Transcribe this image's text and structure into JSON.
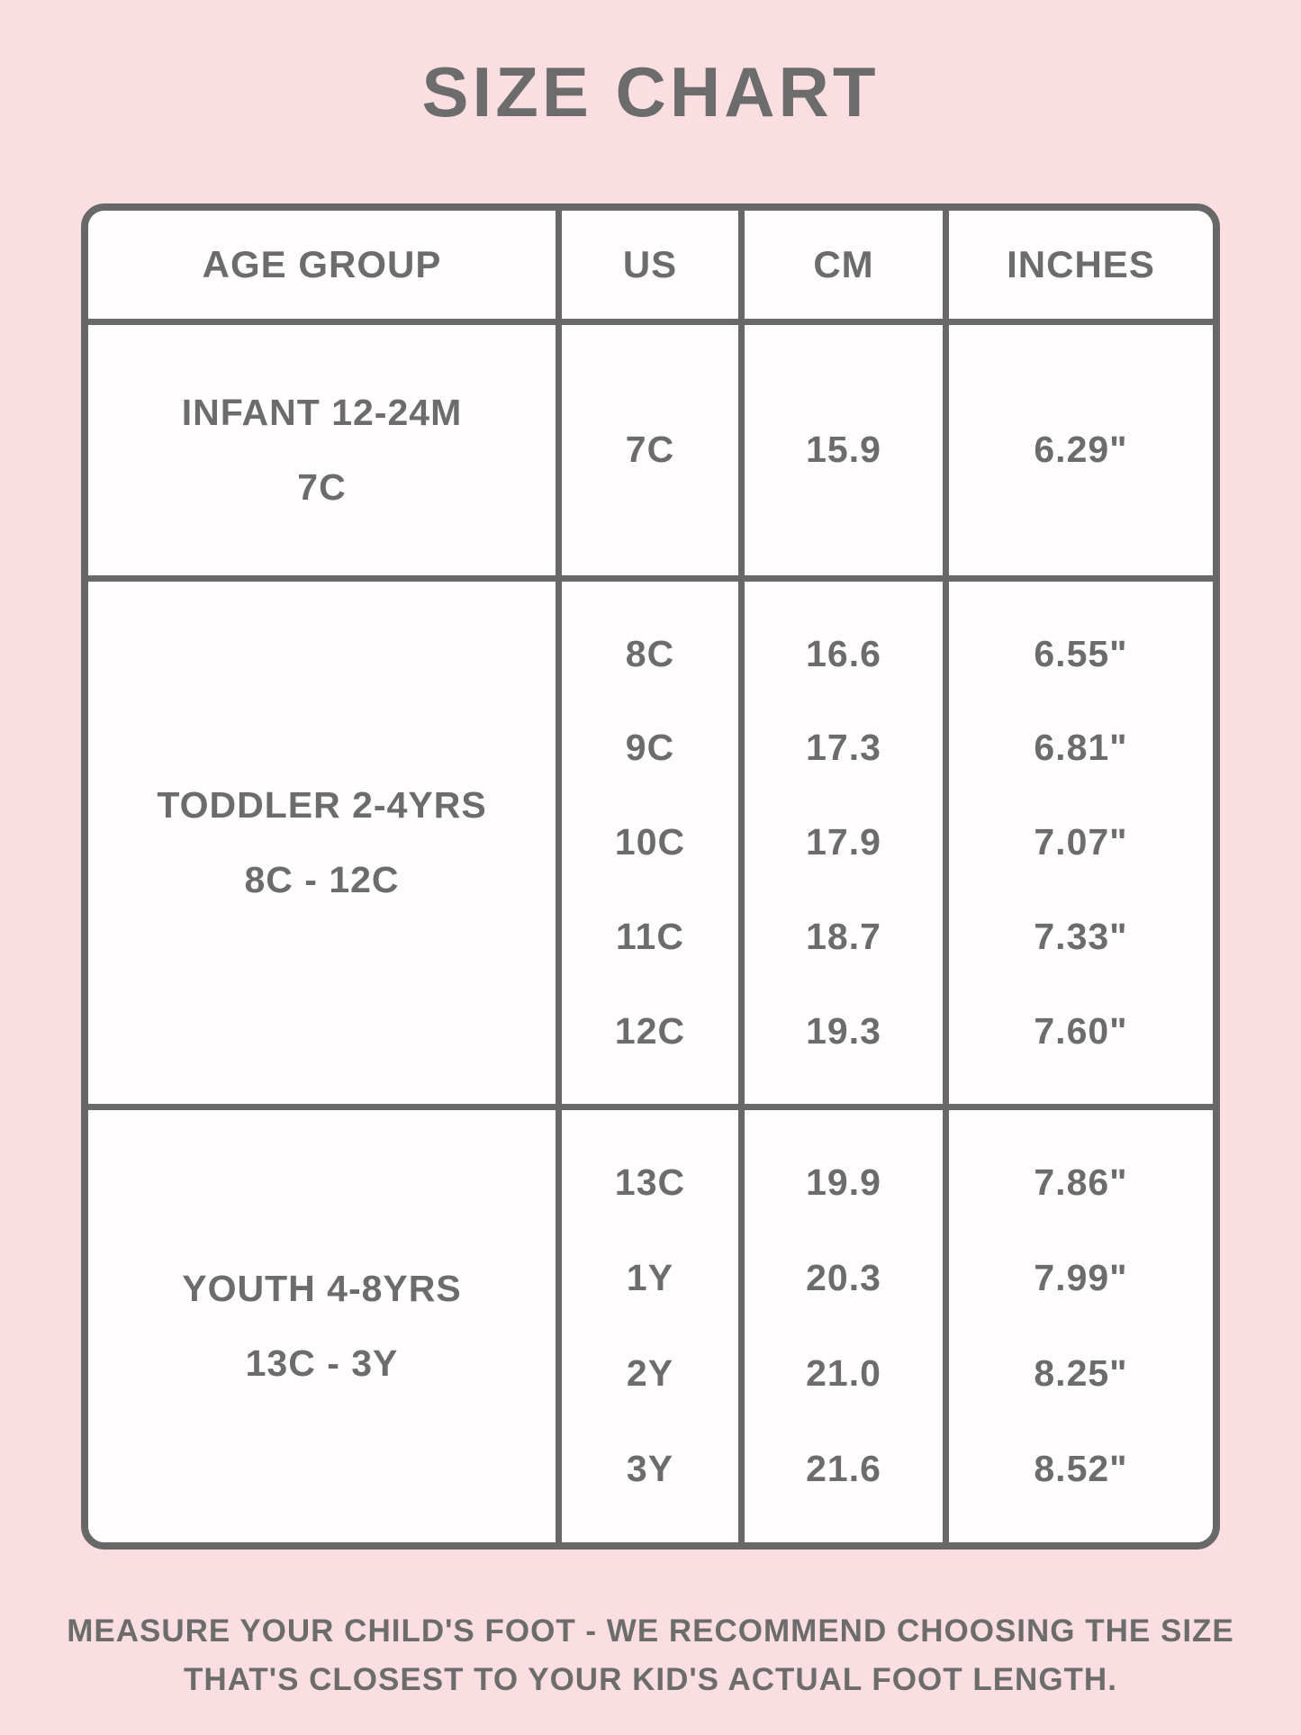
{
  "page": {
    "title": "SIZE CHART",
    "footer_line1": "MEASURE YOUR CHILD'S FOOT - WE RECOMMEND CHOOSING THE SIZE",
    "footer_line2": "THAT'S CLOSEST TO YOUR KID'S ACTUAL FOOT LENGTH."
  },
  "colors": {
    "bg": "#fbdee1",
    "line": "#686868",
    "text": "#6c6c6c",
    "cell": "#fffdfd"
  },
  "table": {
    "headers": [
      "AGE GROUP",
      "US",
      "CM",
      "INCHES"
    ],
    "groups": [
      {
        "label": "INFANT 12-24M",
        "range": "7C",
        "rows": [
          {
            "us": "7C",
            "cm": "15.9",
            "inches": "6.29\""
          }
        ]
      },
      {
        "label": "TODDLER 2-4YRS",
        "range": "8C - 12C",
        "rows": [
          {
            "us": "8C",
            "cm": "16.6",
            "inches": "6.55\""
          },
          {
            "us": "9C",
            "cm": "17.3",
            "inches": "6.81\""
          },
          {
            "us": "10C",
            "cm": "17.9",
            "inches": "7.07\""
          },
          {
            "us": "11C",
            "cm": "18.7",
            "inches": "7.33\""
          },
          {
            "us": "12C",
            "cm": "19.3",
            "inches": "7.60\""
          }
        ]
      },
      {
        "label": "YOUTH 4-8YRS",
        "range": "13C - 3Y",
        "rows": [
          {
            "us": "13C",
            "cm": "19.9",
            "inches": "7.86\""
          },
          {
            "us": "1Y",
            "cm": "20.3",
            "inches": "7.99\""
          },
          {
            "us": "2Y",
            "cm": "21.0",
            "inches": "8.25\""
          },
          {
            "us": "3Y",
            "cm": "21.6",
            "inches": "8.52\""
          }
        ]
      }
    ]
  }
}
